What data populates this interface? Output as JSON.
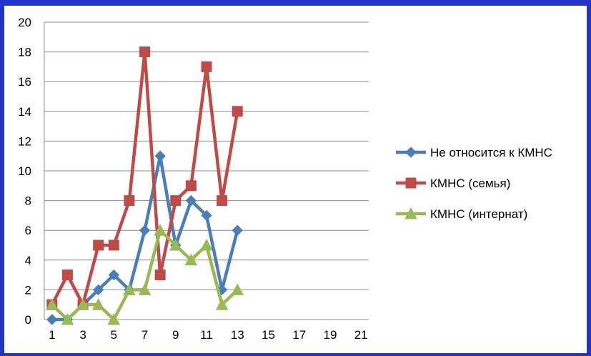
{
  "chart_data": {
    "type": "line",
    "x": [
      1,
      2,
      3,
      4,
      5,
      6,
      7,
      8,
      9,
      10,
      11,
      12,
      13
    ],
    "xticks": [
      1,
      3,
      5,
      7,
      9,
      11,
      13,
      15,
      17,
      19,
      21
    ],
    "xlim": [
      0.5,
      21.5
    ],
    "yticks": [
      0,
      2,
      4,
      6,
      8,
      10,
      12,
      14,
      16,
      18,
      20
    ],
    "ylim": [
      0,
      20
    ],
    "grid": "horizontal",
    "legend_position": "right",
    "series": [
      {
        "name": "Не относится к КМНС",
        "color": "#4a7ebb",
        "marker": "diamond",
        "values": [
          0,
          0,
          1,
          2,
          3,
          2,
          6,
          11,
          5,
          8,
          7,
          2,
          6
        ]
      },
      {
        "name": "КМНС (семья)",
        "color": "#be4b48",
        "marker": "square",
        "values": [
          1,
          3,
          1,
          5,
          5,
          8,
          18,
          3,
          8,
          9,
          17,
          8,
          14
        ]
      },
      {
        "name": "КМНС (интернат)",
        "color": "#98b954",
        "marker": "triangle",
        "values": [
          1,
          0,
          1,
          1,
          0,
          2,
          2,
          6,
          5,
          4,
          5,
          1,
          2
        ]
      }
    ]
  }
}
